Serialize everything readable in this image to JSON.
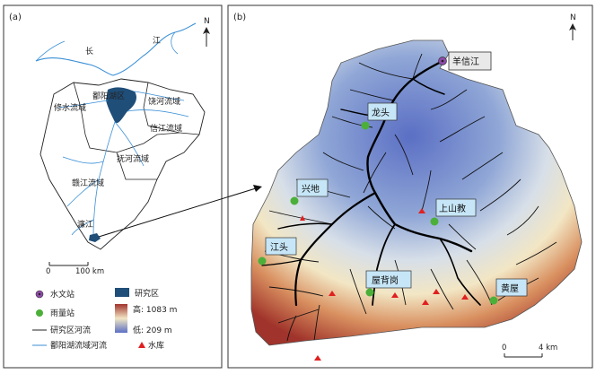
{
  "panel_a": {
    "label": "(a)",
    "north": "N",
    "river_label_1": "长",
    "river_label_2": "江",
    "regions": [
      "修水流域",
      "鄱阳湖区",
      "饶河流域",
      "信江流域",
      "抚河流域",
      "赣江流域",
      "濂江"
    ],
    "scale_start": "0",
    "scale_end": "100 km",
    "legend": {
      "hydro_station": "水文站",
      "rain_station": "雨量站",
      "study_river": "研究区河流",
      "poyang_river": "鄱阳湖流域河流",
      "study_area": "研究区",
      "elev_high": "高: 1083 m",
      "elev_low": "低: 209 m",
      "reservoir": "水库"
    }
  },
  "panel_b": {
    "label": "(b)",
    "north": "N",
    "hydro_station": "羊信江",
    "rain_stations": [
      "龙头",
      "兴地",
      "上山教",
      "江头",
      "屋背岗",
      "黄屋"
    ],
    "scale_start": "0",
    "scale_end": "4 km"
  },
  "colors": {
    "hydro_station": "#8e4aa8",
    "rain_station": "#4caf3a",
    "study_area": "#1f4e79",
    "poyang_river": "#3a8fd6",
    "reservoir": "#e02020",
    "label_box": "#c6e6f7",
    "elev_high": "#a0332b",
    "elev_mid": "#f2e6c4",
    "elev_low": "#5b6fc4"
  }
}
